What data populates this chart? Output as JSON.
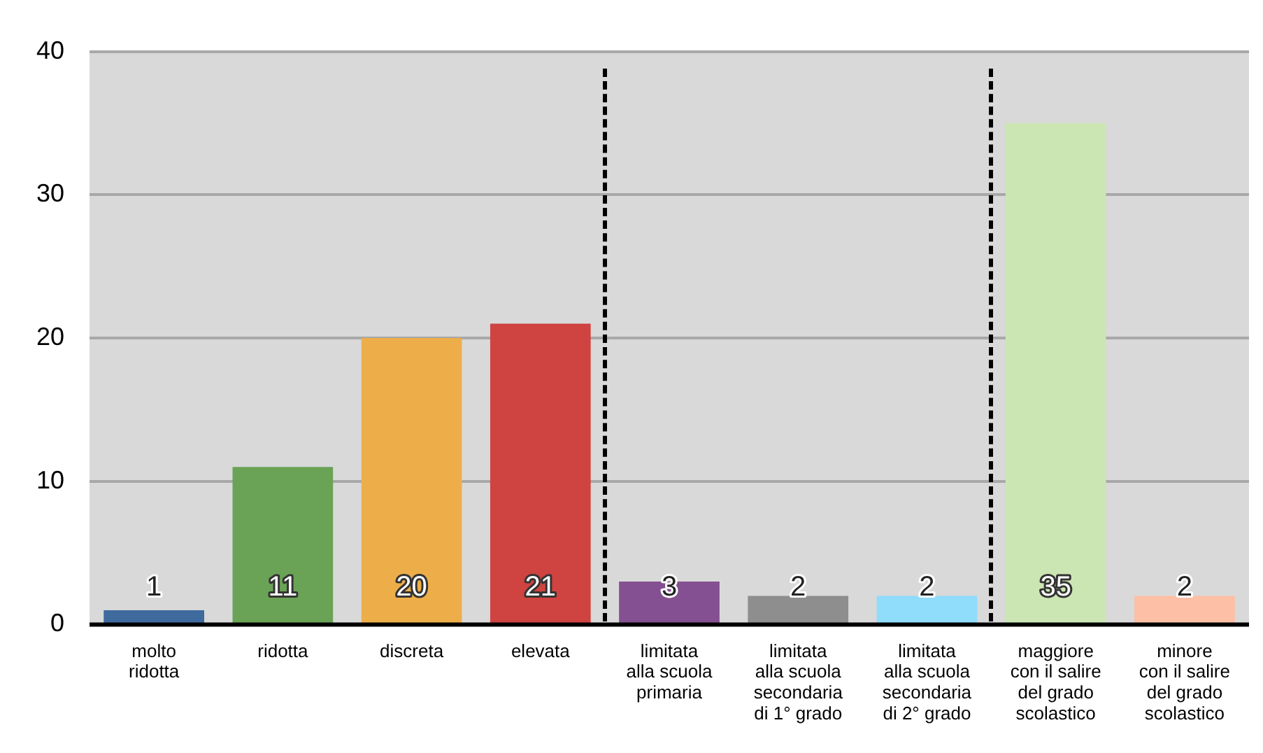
{
  "chart_data": {
    "type": "bar",
    "categories": [
      "molto\nridotta",
      "ridotta",
      "discreta",
      "elevata",
      "limitata\nalla scuola\nprimaria",
      "limitata\nalla scuola\nsecondaria\ndi 1° grado",
      "limitata\nalla scuola\nsecondaria\ndi 2° grado",
      "maggiore\ncon il salire\ndel grado\nscolastico",
      "minore\ncon il salire\ndel grado\nscolastico"
    ],
    "values": [
      1,
      11,
      20,
      21,
      3,
      2,
      2,
      35,
      2
    ],
    "colors": [
      "#3e6a9e",
      "#6aa356",
      "#edae4a",
      "#cf4340",
      "#845091",
      "#8e8e8e",
      "#8fdcfb",
      "#cbe6b3",
      "#fdbfa5"
    ],
    "ylim": [
      0,
      40
    ],
    "yticks": [
      0,
      10,
      20,
      30,
      40
    ],
    "grid": "y",
    "data_labels": true,
    "legend": false
  }
}
